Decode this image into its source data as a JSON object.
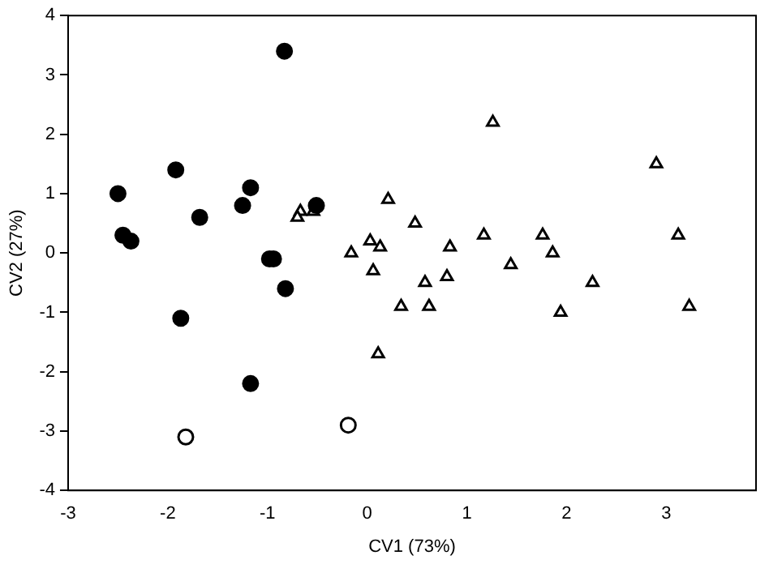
{
  "chart_data": {
    "type": "scatter",
    "xlabel": "CV1 (73%)",
    "ylabel": "CV2 (27%)",
    "xlim": [
      -3,
      3.9
    ],
    "ylim": [
      -4,
      4
    ],
    "xticks": [
      -3,
      -2,
      -1,
      0,
      1,
      2,
      3
    ],
    "yticks": [
      -4,
      -3,
      -2,
      -1,
      0,
      1,
      2,
      3,
      4
    ],
    "grid": false,
    "legend": false,
    "series": [
      {
        "marker": "circle",
        "color": "#000000",
        "x": [
          -0.83,
          -1.92,
          -2.5,
          -1.17,
          -1.25,
          -1.68,
          -0.51,
          -2.45,
          -2.37,
          -0.98,
          -0.94,
          -0.82,
          -1.87,
          -1.17
        ],
        "values": [
          3.4,
          1.4,
          1.0,
          1.1,
          0.8,
          0.6,
          0.8,
          0.3,
          0.2,
          -0.1,
          -0.1,
          -0.6,
          -1.1,
          -2.2
        ]
      },
      {
        "marker": "circle",
        "color": "#ffffff",
        "x": [
          -1.82,
          -0.19
        ],
        "values": [
          -3.1,
          -2.9
        ]
      },
      {
        "marker": "triangle",
        "color": "#ffffff",
        "x": [
          -0.67,
          -0.54,
          -0.7,
          0.21,
          0.48,
          -0.16,
          0.03,
          0.13,
          0.06,
          0.58,
          0.34,
          0.11,
          1.26,
          2.9,
          0.83,
          1.17,
          1.76,
          1.86,
          1.44,
          0.8,
          0.62,
          2.26,
          1.94,
          3.12,
          3.23
        ],
        "values": [
          0.7,
          0.7,
          0.6,
          0.9,
          0.5,
          0.0,
          0.2,
          0.1,
          -0.3,
          -0.5,
          -0.9,
          -1.7,
          2.2,
          1.5,
          0.1,
          0.3,
          0.3,
          0.0,
          -0.2,
          -0.4,
          -0.9,
          -0.5,
          -1.0,
          0.3,
          -0.9
        ]
      }
    ]
  }
}
